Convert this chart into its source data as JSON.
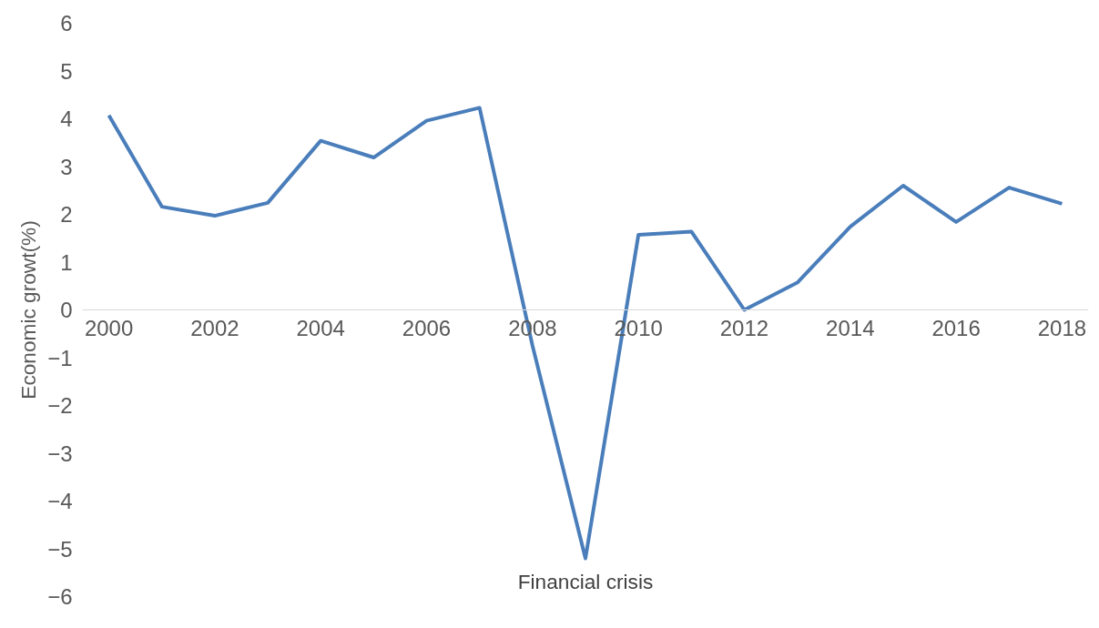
{
  "chart_data": {
    "type": "line",
    "ylabel": "Economic growt(%)",
    "x": [
      2000,
      2001,
      2002,
      2003,
      2004,
      2005,
      2006,
      2007,
      2008,
      2009,
      2010,
      2011,
      2012,
      2013,
      2014,
      2015,
      2016,
      2017,
      2018
    ],
    "series": [
      {
        "color": "#4a7ebb",
        "values": [
          4.07,
          2.16,
          1.97,
          2.24,
          3.54,
          3.19,
          3.96,
          4.23,
          -0.75,
          -5.2,
          1.57,
          1.64,
          0.0,
          0.57,
          1.74,
          2.6,
          1.84,
          2.56,
          2.22
        ]
      }
    ],
    "xlim": [
      1999.5,
      2018.5
    ],
    "xticks": [
      2000,
      2002,
      2004,
      2006,
      2008,
      2010,
      2012,
      2014,
      2016,
      2018
    ],
    "ylim": [
      -6,
      6
    ],
    "yticks": [
      -6,
      -5,
      -4,
      -3,
      -2,
      -1,
      0,
      1,
      2,
      3,
      4,
      5,
      6
    ],
    "annotations": [
      {
        "text": "Financial crisis",
        "x": 2009,
        "y": -5.2
      }
    ],
    "grid": false,
    "marker": "none",
    "line_style": "solid"
  }
}
